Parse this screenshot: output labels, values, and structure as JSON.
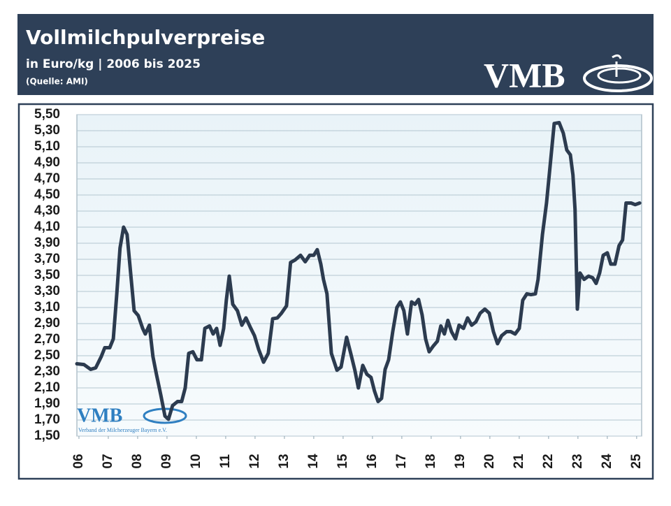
{
  "chart_data": {
    "type": "line",
    "title": "Vollmilchpulverpreise",
    "subtitle": "in Euro/kg | 2006 bis 2025",
    "source": "(Quelle: AMI)",
    "logo_text": "VMB",
    "logo_caption": "Verband der Milcherzeuger Bayern e.V.",
    "color": "#2c3b4f",
    "grid": true,
    "xlim": [
      2005.93,
      2025.17
    ],
    "ylim": [
      1.5,
      5.5
    ],
    "xticks": [
      {
        "value": 2006,
        "label": "06"
      },
      {
        "value": 2007,
        "label": "07"
      },
      {
        "value": 2008,
        "label": "08"
      },
      {
        "value": 2009,
        "label": "09"
      },
      {
        "value": 2010,
        "label": "10"
      },
      {
        "value": 2011,
        "label": "11"
      },
      {
        "value": 2012,
        "label": "12"
      },
      {
        "value": 2013,
        "label": "13"
      },
      {
        "value": 2014,
        "label": "14"
      },
      {
        "value": 2015,
        "label": "15"
      },
      {
        "value": 2016,
        "label": "16"
      },
      {
        "value": 2017,
        "label": "17"
      },
      {
        "value": 2018,
        "label": "18"
      },
      {
        "value": 2019,
        "label": "19"
      },
      {
        "value": 2020,
        "label": "20"
      },
      {
        "value": 2021,
        "label": "21"
      },
      {
        "value": 2022,
        "label": "22"
      },
      {
        "value": 2023,
        "label": "23"
      },
      {
        "value": 2024,
        "label": "24"
      },
      {
        "value": 2025,
        "label": "25"
      }
    ],
    "yticks": [
      {
        "value": 1.5,
        "label": "1,50"
      },
      {
        "value": 1.7,
        "label": "1,70"
      },
      {
        "value": 1.9,
        "label": "1,90"
      },
      {
        "value": 2.1,
        "label": "2,10"
      },
      {
        "value": 2.3,
        "label": "2,30"
      },
      {
        "value": 2.5,
        "label": "2,50"
      },
      {
        "value": 2.7,
        "label": "2,70"
      },
      {
        "value": 2.9,
        "label": "2,90"
      },
      {
        "value": 3.1,
        "label": "3,10"
      },
      {
        "value": 3.3,
        "label": "3,30"
      },
      {
        "value": 3.5,
        "label": "3,50"
      },
      {
        "value": 3.7,
        "label": "3,70"
      },
      {
        "value": 3.9,
        "label": "3,90"
      },
      {
        "value": 4.1,
        "label": "4,10"
      },
      {
        "value": 4.3,
        "label": "4,30"
      },
      {
        "value": 4.5,
        "label": "4,50"
      },
      {
        "value": 4.7,
        "label": "4,70"
      },
      {
        "value": 4.9,
        "label": "4,90"
      },
      {
        "value": 5.1,
        "label": "5,10"
      },
      {
        "value": 5.3,
        "label": "5,30"
      },
      {
        "value": 5.5,
        "label": "5,50"
      }
    ],
    "x": [
      2005.93,
      2006.17,
      2006.4,
      2006.57,
      2006.76,
      2006.88,
      2007.05,
      2007.17,
      2007.29,
      2007.4,
      2007.52,
      2007.64,
      2007.76,
      2007.88,
      2008.02,
      2008.17,
      2008.26,
      2008.4,
      2008.52,
      2008.64,
      2008.79,
      2008.93,
      2009.05,
      2009.19,
      2009.36,
      2009.5,
      2009.62,
      2009.74,
      2009.88,
      2010.02,
      2010.17,
      2010.29,
      2010.45,
      2010.57,
      2010.69,
      2010.81,
      2010.93,
      2011.02,
      2011.12,
      2011.24,
      2011.4,
      2011.55,
      2011.69,
      2011.83,
      2011.98,
      2012.12,
      2012.29,
      2012.45,
      2012.6,
      2012.76,
      2012.9,
      2013.07,
      2013.21,
      2013.36,
      2013.55,
      2013.71,
      2013.86,
      2014.0,
      2014.12,
      2014.24,
      2014.33,
      2014.45,
      2014.6,
      2014.79,
      2014.93,
      2015.12,
      2015.26,
      2015.4,
      2015.52,
      2015.67,
      2015.81,
      2015.95,
      2016.07,
      2016.19,
      2016.31,
      2016.43,
      2016.55,
      2016.69,
      2016.83,
      2016.95,
      2017.07,
      2017.19,
      2017.33,
      2017.45,
      2017.57,
      2017.69,
      2017.81,
      2017.93,
      2018.07,
      2018.21,
      2018.33,
      2018.45,
      2018.57,
      2018.69,
      2018.83,
      2018.95,
      2019.1,
      2019.24,
      2019.38,
      2019.52,
      2019.67,
      2019.83,
      2019.98,
      2020.12,
      2020.26,
      2020.4,
      2020.57,
      2020.71,
      2020.86,
      2021.0,
      2021.12,
      2021.26,
      2021.4,
      2021.55,
      2021.64,
      2021.79,
      2021.93,
      2022.07,
      2022.19,
      2022.36,
      2022.5,
      2022.62,
      2022.74,
      2022.83,
      2022.9,
      2022.98,
      2023.07,
      2023.21,
      2023.36,
      2023.5,
      2023.62,
      2023.74,
      2023.86,
      2024.0,
      2024.12,
      2024.26,
      2024.4,
      2024.52,
      2024.64,
      2024.81,
      2024.95,
      2025.1
    ],
    "values": [
      2.4,
      2.39,
      2.33,
      2.35,
      2.49,
      2.6,
      2.6,
      2.71,
      3.27,
      3.84,
      4.1,
      4.01,
      3.53,
      3.06,
      3.0,
      2.84,
      2.77,
      2.88,
      2.49,
      2.27,
      2.01,
      1.75,
      1.71,
      1.88,
      1.93,
      1.93,
      2.1,
      2.53,
      2.55,
      2.45,
      2.45,
      2.84,
      2.87,
      2.77,
      2.84,
      2.63,
      2.84,
      3.19,
      3.49,
      3.14,
      3.06,
      2.88,
      2.97,
      2.86,
      2.75,
      2.58,
      2.42,
      2.53,
      2.96,
      2.97,
      3.03,
      3.12,
      3.66,
      3.69,
      3.75,
      3.67,
      3.75,
      3.75,
      3.82,
      3.64,
      3.45,
      3.27,
      2.53,
      2.32,
      2.36,
      2.73,
      2.53,
      2.32,
      2.1,
      2.38,
      2.27,
      2.23,
      2.06,
      1.93,
      1.97,
      2.33,
      2.45,
      2.8,
      3.1,
      3.17,
      3.06,
      2.77,
      3.17,
      3.14,
      3.2,
      3.01,
      2.71,
      2.55,
      2.62,
      2.68,
      2.87,
      2.77,
      2.94,
      2.8,
      2.71,
      2.88,
      2.84,
      2.97,
      2.88,
      2.92,
      3.03,
      3.08,
      3.03,
      2.8,
      2.65,
      2.75,
      2.8,
      2.8,
      2.77,
      2.84,
      3.19,
      3.27,
      3.26,
      3.27,
      3.45,
      4.01,
      4.4,
      4.93,
      5.39,
      5.4,
      5.27,
      5.06,
      5.0,
      4.75,
      4.32,
      3.08,
      3.53,
      3.45,
      3.49,
      3.47,
      3.4,
      3.53,
      3.75,
      3.78,
      3.64,
      3.64,
      3.87,
      3.94,
      4.4,
      4.4,
      4.38,
      4.4
    ]
  }
}
